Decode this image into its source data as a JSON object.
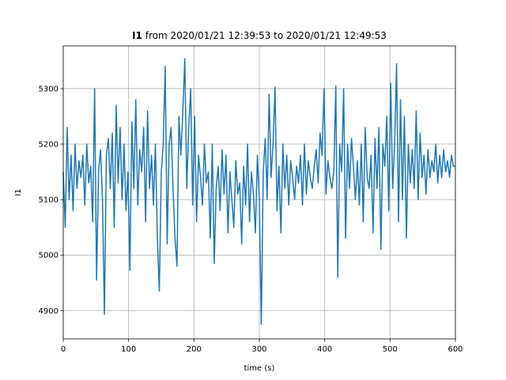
{
  "chart_data": {
    "type": "line",
    "title": {
      "bold": "I1",
      "rest": "from 2020/01/21 12:39:53 to 2020/01/21 12:49:53"
    },
    "xlabel": "time (s)",
    "ylabel": "I1",
    "xlim": [
      0,
      600
    ],
    "xticks": [
      0,
      100,
      200,
      300,
      400,
      500,
      600
    ],
    "ylim": [
      4849,
      5377
    ],
    "yticks": [
      4900,
      5000,
      5100,
      5200,
      5300
    ],
    "grid": true,
    "x": [
      0,
      3,
      6,
      9,
      12,
      15,
      18,
      21,
      24,
      27,
      30,
      33,
      36,
      39,
      42,
      45,
      48,
      51,
      54,
      57,
      60,
      63,
      66,
      69,
      72,
      75,
      78,
      81,
      84,
      87,
      90,
      93,
      96,
      99,
      102,
      105,
      108,
      111,
      114,
      117,
      120,
      123,
      126,
      129,
      132,
      135,
      138,
      141,
      144,
      147,
      150,
      153,
      156,
      159,
      162,
      165,
      168,
      171,
      174,
      177,
      180,
      183,
      186,
      189,
      192,
      195,
      198,
      201,
      204,
      207,
      210,
      213,
      216,
      219,
      222,
      225,
      228,
      231,
      234,
      237,
      240,
      243,
      246,
      249,
      252,
      255,
      258,
      261,
      264,
      267,
      270,
      273,
      276,
      279,
      282,
      285,
      288,
      291,
      294,
      297,
      300,
      303,
      306,
      309,
      312,
      315,
      318,
      321,
      324,
      327,
      330,
      333,
      336,
      339,
      342,
      345,
      348,
      351,
      354,
      357,
      360,
      363,
      366,
      369,
      372,
      375,
      378,
      381,
      384,
      387,
      390,
      393,
      396,
      399,
      402,
      405,
      408,
      411,
      414,
      417,
      420,
      423,
      426,
      429,
      432,
      435,
      438,
      441,
      444,
      447,
      450,
      453,
      456,
      459,
      462,
      465,
      468,
      471,
      474,
      477,
      480,
      483,
      486,
      489,
      492,
      495,
      498,
      501,
      504,
      507,
      510,
      513,
      516,
      519,
      522,
      525,
      528,
      531,
      534,
      537,
      540,
      543,
      546,
      549,
      552,
      555,
      558,
      561,
      564,
      567,
      570,
      573,
      576,
      579,
      582,
      585,
      588,
      591,
      594,
      597,
      600
    ],
    "series": [
      {
        "name": "I1",
        "color": "#1f77b4",
        "values": [
          5150,
          5050,
          5230,
          5100,
          5180,
          5080,
          5200,
          5120,
          5170,
          5140,
          5180,
          5090,
          5200,
          5130,
          5160,
          5060,
          5300,
          4955,
          5150,
          5190,
          5100,
          4893,
          5180,
          5210,
          5120,
          5220,
          5050,
          5270,
          5130,
          5230,
          5100,
          5200,
          5080,
          5150,
          4972,
          5240,
          5120,
          5280,
          5090,
          5190,
          5150,
          5230,
          5060,
          5260,
          5120,
          5180,
          5090,
          5200,
          5030,
          4935,
          5150,
          5200,
          5340,
          5020,
          5200,
          5230,
          5120,
          5030,
          4980,
          5250,
          5180,
          5260,
          5354,
          5120,
          5230,
          5300,
          5090,
          5250,
          5060,
          5180,
          5140,
          5090,
          5200,
          5130,
          5150,
          5030,
          5200,
          4985,
          5120,
          5160,
          5080,
          5190,
          5110,
          5180,
          5040,
          5150,
          5100,
          5050,
          5170,
          5110,
          5130,
          5020,
          5160,
          5090,
          5200,
          5060,
          5150,
          5110,
          5040,
          5180,
          5100,
          4875,
          5150,
          5210,
          5100,
          5290,
          5140,
          5200,
          5303,
          5080,
          5160,
          5040,
          5200,
          5120,
          5180,
          5090,
          5170,
          5140,
          5100,
          5160,
          5130,
          5180,
          5090,
          5200,
          5110,
          5170,
          5140,
          5120,
          5160,
          5190,
          5130,
          5220,
          5180,
          5300,
          5110,
          5170,
          5140,
          5120,
          5150,
          5305,
          4960,
          5200,
          5150,
          5300,
          5030,
          5200,
          5120,
          5210,
          5160,
          5100,
          5170,
          5090,
          5200,
          5060,
          5230,
          5140,
          5120,
          5180,
          5040,
          5210,
          5120,
          5230,
          5010,
          5200,
          5160,
          5250,
          5080,
          5310,
          5120,
          5200,
          5345,
          5060,
          5280,
          5100,
          5250,
          5030,
          5200,
          5130,
          5190,
          5120,
          5260,
          5100,
          5220,
          5140,
          5180,
          5110,
          5190,
          5140,
          5170,
          5150,
          5200,
          5130,
          5180,
          5140,
          5190,
          5150,
          5170,
          5140,
          5180,
          5160,
          5160
        ]
      }
    ]
  }
}
